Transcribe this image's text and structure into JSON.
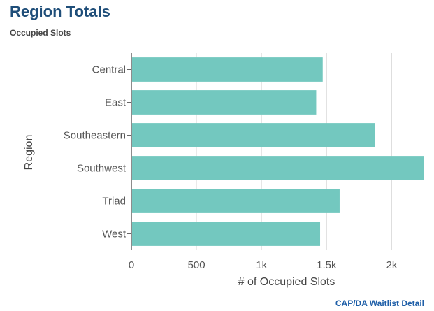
{
  "header": {
    "title": "Region Totals",
    "subtitle": "Occupied Slots"
  },
  "footer": {
    "link_label": "CAP/DA Waitlist Detail"
  },
  "colors": {
    "bar": "#73c8bf",
    "axis": "#666666",
    "grid": "#dddddd",
    "title": "#1f4e79",
    "link": "#1f5fa8"
  },
  "chart_data": {
    "type": "bar",
    "orientation": "horizontal",
    "title": "Region Totals",
    "subtitle": "Occupied Slots",
    "xlabel": "# of Occupied Slots",
    "ylabel": "Region",
    "categories": [
      "Central",
      "East",
      "Southeastern",
      "Southwest",
      "Triad",
      "West"
    ],
    "values": [
      1470,
      1420,
      1870,
      2250,
      1600,
      1450
    ],
    "xlim": [
      0,
      2250
    ],
    "xticks": [
      0,
      500,
      1000,
      1500,
      2000
    ],
    "xtick_labels": [
      "0",
      "500",
      "1k",
      "1.5k",
      "2k"
    ],
    "grid": true
  }
}
